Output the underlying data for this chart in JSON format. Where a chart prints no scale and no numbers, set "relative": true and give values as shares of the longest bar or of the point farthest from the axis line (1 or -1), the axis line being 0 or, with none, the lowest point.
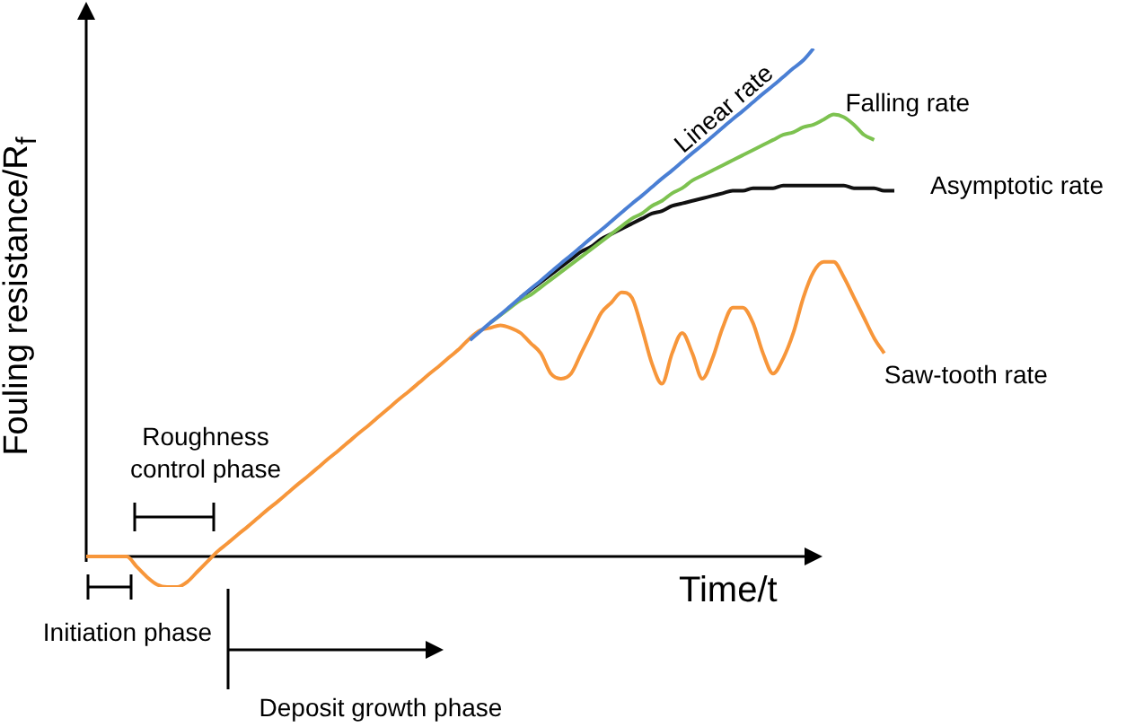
{
  "chart_data": {
    "type": "line",
    "relative": true,
    "xlabel": "Time/t",
    "ylabel": "Fouling resistance/R$_{f}$",
    "annotations": [
      "Roughness control phase",
      "Initiation phase",
      "Deposit growth phase"
    ],
    "categories": [
      null,
      null,
      null,
      null,
      null,
      null,
      null,
      null,
      null,
      null,
      null,
      null,
      null,
      null,
      null,
      null,
      null,
      null,
      null,
      null,
      null,
      null,
      null,
      null,
      null,
      null,
      null,
      null,
      null,
      null,
      null,
      null,
      null,
      null,
      null,
      null,
      null,
      null,
      null,
      null,
      null,
      null,
      null,
      null,
      null,
      null,
      null,
      null,
      null,
      null,
      null,
      null,
      null,
      null,
      null,
      null,
      null,
      null,
      null,
      null,
      null,
      null,
      null,
      null,
      null,
      null,
      null,
      null,
      null,
      null,
      null,
      null,
      null,
      null,
      null,
      null,
      null,
      null,
      null,
      null,
      null
    ],
    "series": [
      {
        "name": "Linear rate",
        "color": "#4a7fd4",
        "values": [
          null,
          null,
          null,
          null,
          null,
          null,
          null,
          null,
          null,
          null,
          null,
          null,
          null,
          null,
          null,
          null,
          null,
          null,
          null,
          null,
          null,
          null,
          null,
          null,
          null,
          null,
          null,
          null,
          null,
          null,
          null,
          null,
          null,
          null,
          null,
          null,
          null,
          null,
          0.426,
          0.443,
          0.46,
          0.476,
          0.493,
          0.51,
          0.527,
          0.543,
          0.56,
          0.577,
          0.593,
          0.61,
          0.627,
          0.643,
          0.66,
          0.677,
          0.694,
          0.71,
          0.727,
          0.744,
          0.76,
          0.777,
          0.794,
          0.81,
          0.827,
          0.844,
          0.861,
          0.877,
          0.894,
          0.911,
          0.927,
          0.944,
          0.961,
          0.977,
          1,
          null,
          null,
          null,
          null,
          null,
          null,
          null,
          null
        ]
      },
      {
        "name": "Falling rate",
        "color": "#7dc250",
        "values": [
          null,
          null,
          null,
          null,
          null,
          null,
          null,
          null,
          null,
          null,
          null,
          null,
          null,
          null,
          null,
          null,
          null,
          null,
          null,
          null,
          null,
          null,
          null,
          null,
          null,
          null,
          null,
          null,
          null,
          null,
          null,
          null,
          null,
          null,
          null,
          null,
          null,
          null,
          null,
          null,
          0.46,
          0.475,
          0.49,
          0.505,
          0.515,
          0.53,
          0.545,
          0.56,
          0.575,
          0.59,
          0.605,
          0.62,
          0.635,
          0.65,
          0.665,
          0.675,
          0.69,
          0.7,
          0.715,
          0.725,
          0.74,
          0.75,
          0.76,
          0.77,
          0.78,
          0.79,
          0.8,
          0.81,
          0.82,
          0.83,
          0.835,
          0.845,
          0.85,
          0.86,
          0.87,
          0.865,
          0.85,
          0.83,
          0.82,
          null,
          null
        ]
      },
      {
        "name": "Asymptotic rate",
        "color": "#111111",
        "values": [
          null,
          null,
          null,
          null,
          null,
          null,
          null,
          null,
          null,
          null,
          null,
          null,
          null,
          null,
          null,
          null,
          null,
          null,
          null,
          null,
          null,
          null,
          null,
          null,
          null,
          null,
          null,
          null,
          null,
          null,
          null,
          null,
          null,
          null,
          null,
          null,
          null,
          null,
          null,
          null,
          null,
          null,
          null,
          0.51,
          0.525,
          0.54,
          0.555,
          0.57,
          0.585,
          0.6,
          0.61,
          0.625,
          0.635,
          0.645,
          0.655,
          0.665,
          0.675,
          0.68,
          0.69,
          0.695,
          0.7,
          0.705,
          0.71,
          0.715,
          0.72,
          0.72,
          0.725,
          0.725,
          0.725,
          0.73,
          0.73,
          0.73,
          0.73,
          0.73,
          0.73,
          0.73,
          0.725,
          0.725,
          0.725,
          0.72,
          0.72
        ]
      },
      {
        "name": "Saw-tooth rate",
        "color": "#f7963a",
        "values": [
          0,
          0,
          0,
          0,
          0,
          -0.02,
          -0.04,
          -0.055,
          -0.06,
          -0.06,
          -0.05,
          -0.03,
          -0.01,
          0.01,
          0.026,
          0.043,
          0.059,
          0.076,
          0.093,
          0.109,
          0.126,
          0.143,
          0.159,
          0.176,
          0.193,
          0.209,
          0.226,
          0.243,
          0.259,
          0.276,
          0.293,
          0.31,
          0.326,
          0.343,
          0.36,
          0.376,
          0.393,
          0.41,
          0.43,
          0.445,
          0.45,
          0.455,
          0.45,
          0.44,
          0.42,
          0.4,
          0.36,
          0.35,
          0.36,
          0.4,
          0.44,
          0.48,
          0.5,
          0.52,
          0.51,
          0.45,
          0.38,
          0.34,
          0.4,
          0.44,
          0.4,
          0.35,
          0.39,
          0.45,
          0.49,
          0.49,
          0.46,
          0.4,
          0.36,
          0.39,
          0.44,
          0.51,
          0.56,
          0.58,
          0.58,
          0.55,
          0.51,
          0.47,
          0.43,
          0.4,
          null
        ]
      }
    ]
  }
}
